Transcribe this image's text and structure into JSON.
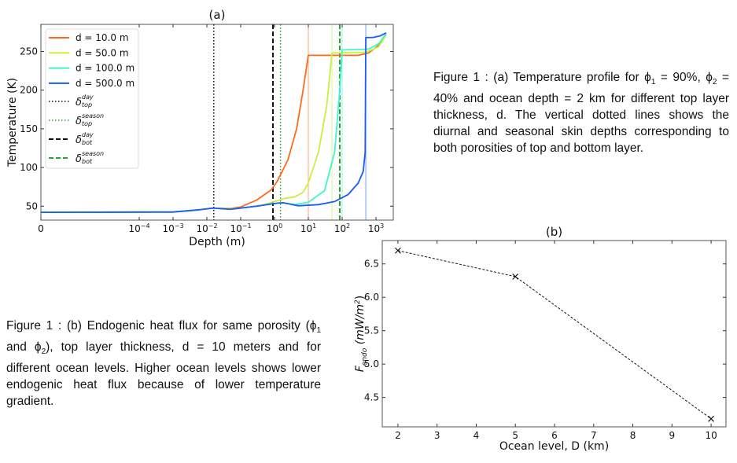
{
  "chart_data": [
    {
      "type": "line",
      "title": "(a)",
      "xlabel": "Depth (m)",
      "ylabel": "Temperature (K)",
      "xscale": "symlog",
      "xlim": [
        0,
        3000
      ],
      "ylim": [
        32,
        285
      ],
      "xticks": [
        {
          "v": 0,
          "label": "0"
        },
        {
          "v": 0.0001,
          "label": "10",
          "exp": "−4"
        },
        {
          "v": 0.001,
          "label": "10",
          "exp": "−3"
        },
        {
          "v": 0.01,
          "label": "10",
          "exp": "−2"
        },
        {
          "v": 0.1,
          "label": "10",
          "exp": "−1"
        },
        {
          "v": 1,
          "label": "10",
          "exp": "0"
        },
        {
          "v": 10,
          "label": "10",
          "exp": "1"
        },
        {
          "v": 100,
          "label": "10",
          "exp": "2"
        },
        {
          "v": 1000,
          "label": "10",
          "exp": "3"
        }
      ],
      "yticks": [
        50,
        100,
        150,
        200,
        250
      ],
      "legend_position": "upper-left",
      "series": [
        {
          "name": "d = 10.0 m",
          "color": "#ff6a1a",
          "layer": 10,
          "points": [
            [
              0,
              42
            ],
            [
              0.001,
              42.5
            ],
            [
              0.005,
              45
            ],
            [
              0.015,
              47.5
            ],
            [
              0.05,
              47
            ],
            [
              0.1,
              49
            ],
            [
              0.3,
              58
            ],
            [
              0.8,
              71
            ],
            [
              1.2,
              82
            ],
            [
              2.5,
              110
            ],
            [
              4.5,
              150
            ],
            [
              7,
              200
            ],
            [
              10,
              245
            ],
            [
              300,
              245
            ],
            [
              600,
              248
            ],
            [
              1200,
              258
            ],
            [
              2000,
              273
            ]
          ]
        },
        {
          "name": "d = 50.0 m",
          "color": "#c8f03c",
          "layer": 50,
          "points": [
            [
              0,
              42
            ],
            [
              0.001,
              42.5
            ],
            [
              0.005,
              45
            ],
            [
              0.015,
              47.5
            ],
            [
              0.05,
              46.5
            ],
            [
              0.1,
              47.5
            ],
            [
              0.4,
              51
            ],
            [
              1,
              56
            ],
            [
              2,
              60
            ],
            [
              4,
              62
            ],
            [
              7,
              68
            ],
            [
              10,
              80
            ],
            [
              20,
              120
            ],
            [
              35,
              180
            ],
            [
              50,
              248
            ],
            [
              500,
              249
            ],
            [
              1200,
              256
            ],
            [
              2000,
              271
            ]
          ]
        },
        {
          "name": "d = 100.0 m",
          "color": "#3ef5d0",
          "layer": 100,
          "points": [
            [
              0,
              42
            ],
            [
              0.001,
              42.5
            ],
            [
              0.005,
              45
            ],
            [
              0.015,
              47.5
            ],
            [
              0.05,
              46
            ],
            [
              0.3,
              50
            ],
            [
              1.2,
              54
            ],
            [
              2,
              54
            ],
            [
              4,
              52
            ],
            [
              10,
              55
            ],
            [
              30,
              70
            ],
            [
              60,
              120
            ],
            [
              85,
              200
            ],
            [
              100,
              252
            ],
            [
              600,
              253
            ],
            [
              1200,
              260
            ],
            [
              2000,
              273
            ]
          ]
        },
        {
          "name": "d = 500.0 m",
          "color": "#1a5cf5",
          "layer": 500,
          "points": [
            [
              0,
              42
            ],
            [
              0.001,
              42.5
            ],
            [
              0.005,
              45
            ],
            [
              0.015,
              47.5
            ],
            [
              0.05,
              46
            ],
            [
              0.3,
              50
            ],
            [
              1.2,
              54
            ],
            [
              1.8,
              54.5
            ],
            [
              5,
              50.5
            ],
            [
              20,
              52
            ],
            [
              60,
              56
            ],
            [
              150,
              65
            ],
            [
              300,
              80
            ],
            [
              420,
              95
            ],
            [
              480,
              120
            ],
            [
              500,
              268
            ],
            [
              800,
              268
            ],
            [
              1300,
              270
            ],
            [
              2000,
              274
            ]
          ]
        }
      ],
      "skin_depths": [
        {
          "name": "δ",
          "sup": "day",
          "sub": "top",
          "x": 0.016,
          "style": "dotted",
          "color": "#111111"
        },
        {
          "name": "δ",
          "sup": "season",
          "sub": "top",
          "x": 1.5,
          "style": "dotted",
          "color": "#2ca02c"
        },
        {
          "name": "δ",
          "sup": "day",
          "sub": "bot",
          "x": 0.9,
          "style": "dashed",
          "color": "#111111"
        },
        {
          "name": "δ",
          "sup": "season",
          "sub": "bot",
          "x": 85,
          "style": "dashed",
          "color": "#2ca02c"
        }
      ]
    },
    {
      "type": "line",
      "title": "(b)",
      "xlabel": "Ocean level, D (km)",
      "ylabel": "F",
      "ylabel_sub": "endo",
      "ylabel_unit": "(mW/m",
      "ylabel_unit_sup": "2",
      "ylabel_close": ")",
      "xlim": [
        1.6,
        10.38
      ],
      "ylim": [
        4.06,
        6.85
      ],
      "xticks": [
        2,
        3,
        4,
        5,
        6,
        7,
        8,
        9,
        10
      ],
      "yticks": [
        "4.5",
        "5.0",
        "5.5",
        "6.0",
        "6.5"
      ],
      "x": [
        2,
        5,
        10
      ],
      "y": [
        6.7,
        6.31,
        4.18
      ],
      "marker": "x",
      "line_style": "dashed",
      "color": "#111111"
    }
  ],
  "captions": {
    "a": {
      "p1": "Figure 1 :  (a) Temperature profile for ϕ",
      "s1": "1",
      "p2": " = 90%, ϕ",
      "s2": "2",
      "p3": " = 40% and ocean depth = 2 km for different top layer thickness, d. The vertical dotted lines shows the diurnal and seasonal skin depths corresponding to both porosities of top and bottom layer."
    },
    "b": {
      "p1": "Figure 1 : (b) Endogenic heat flux  for same porosity (ϕ",
      "s1": "1",
      "p2": " and ϕ",
      "s2": "2",
      "p3": "), top layer thickness, d = 10 meters and for different ocean levels. Higher ocean levels shows lower endogenic heat flux because of lower temperature gradient."
    }
  }
}
